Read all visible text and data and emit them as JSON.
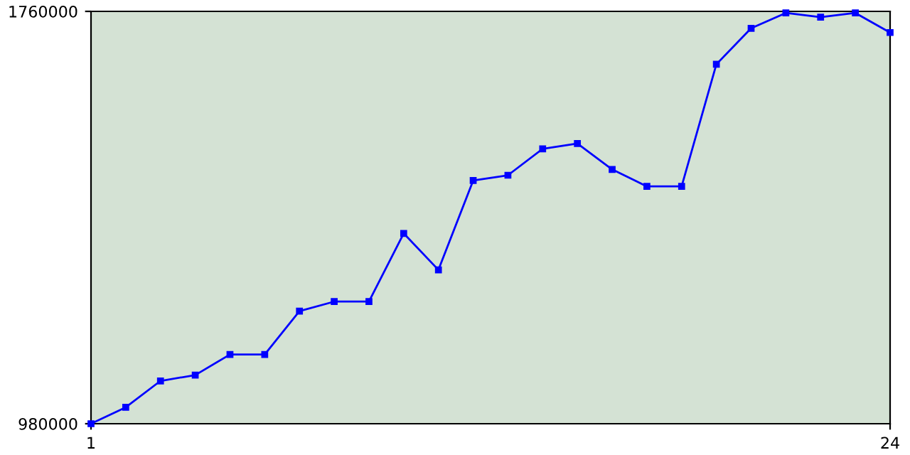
{
  "chart_data": {
    "type": "line",
    "x": [
      1,
      2,
      3,
      4,
      5,
      6,
      7,
      8,
      9,
      10,
      11,
      12,
      13,
      14,
      15,
      16,
      17,
      18,
      19,
      20,
      21,
      22,
      23,
      24
    ],
    "series": [
      {
        "color": "#0000ff",
        "values": [
          980000,
          1011000,
          1061000,
          1072000,
          1111000,
          1111000,
          1193000,
          1211000,
          1211000,
          1340000,
          1271000,
          1440000,
          1450000,
          1500000,
          1510000,
          1461000,
          1429000,
          1429000,
          1660000,
          1728000,
          1757000,
          1749000,
          1757000,
          1720000
        ]
      }
    ],
    "xlim": [
      1,
      24
    ],
    "xticks": [
      1,
      24
    ],
    "ylim": [
      980000,
      1760000
    ],
    "yticks": [
      980000,
      1760000
    ],
    "marker": "square",
    "line_style": "solid",
    "grid": false,
    "legend": false
  }
}
